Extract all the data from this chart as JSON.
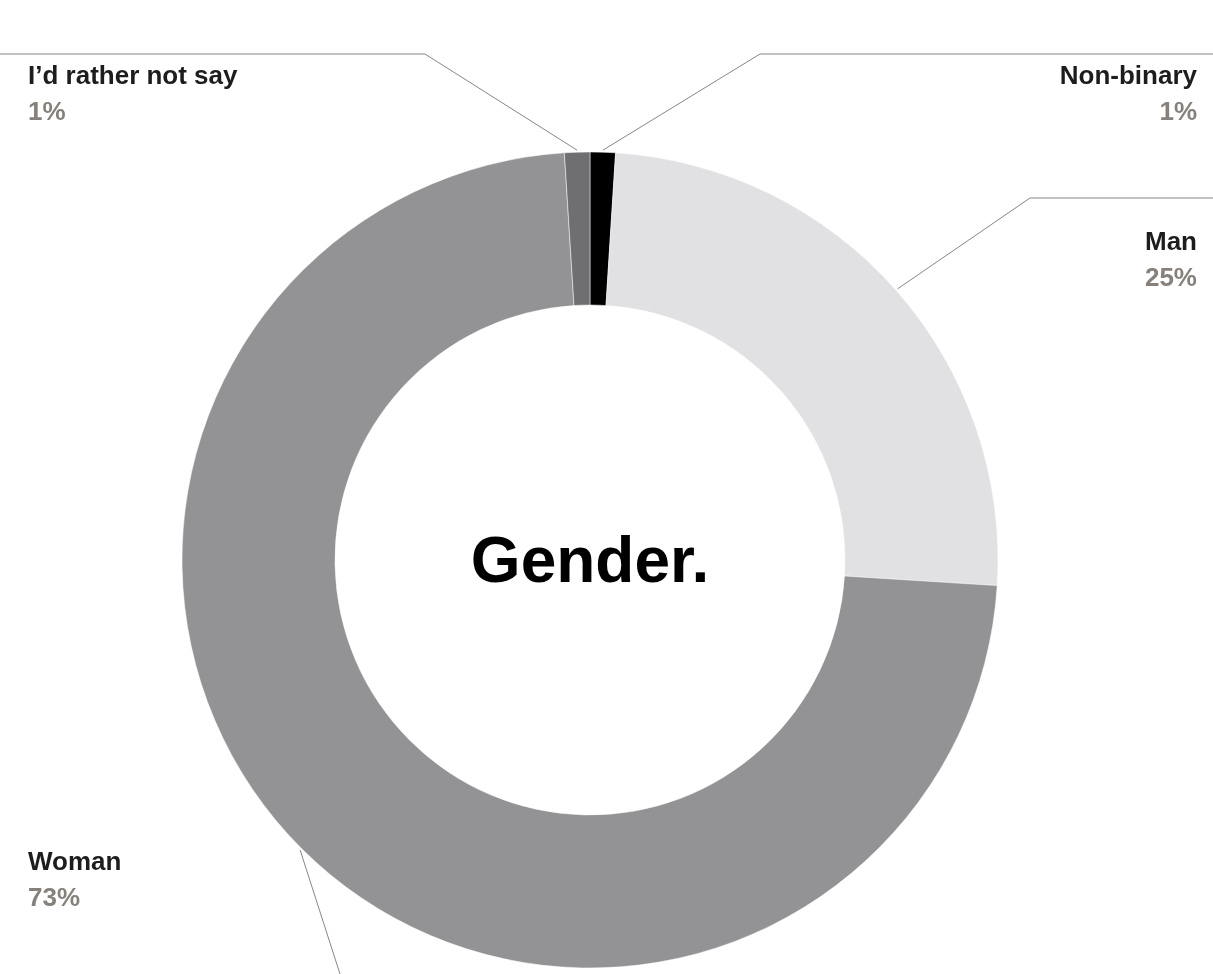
{
  "chart_data": {
    "type": "donut",
    "title": "Gender.",
    "categories": [
      "Non-binary",
      "Man",
      "Woman",
      "I’d rather not say"
    ],
    "values": [
      1,
      25,
      73,
      1
    ],
    "value_labels": [
      "1%",
      "25%",
      "73%",
      "1%"
    ],
    "colors": [
      "#000000",
      "#e1e1e3",
      "#939396",
      "#6e6e73"
    ]
  }
}
